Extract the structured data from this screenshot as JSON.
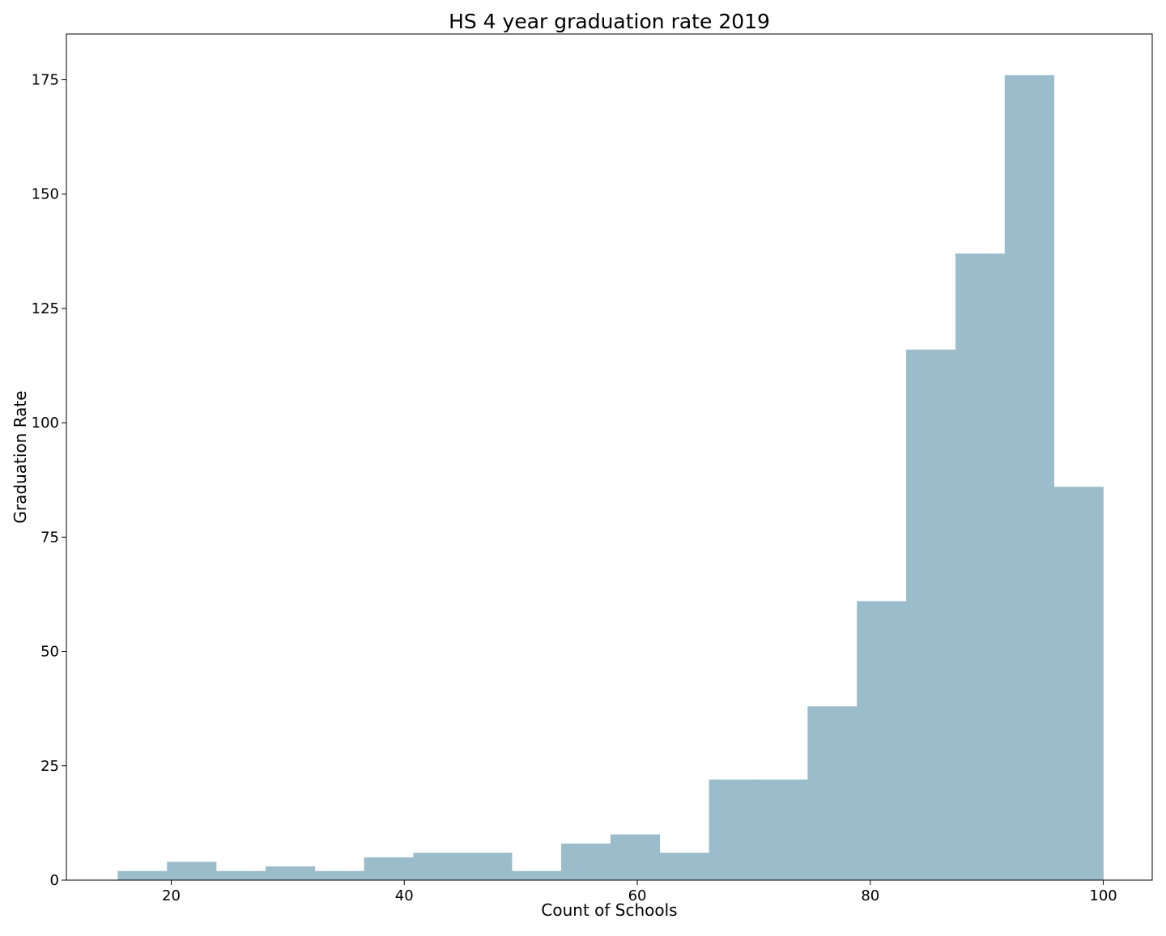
{
  "chart_data": {
    "type": "bar",
    "title": "HS 4 year graduation rate 2019",
    "xlabel": "Count of Schools",
    "ylabel": "Graduation Rate",
    "xlim": [
      11.0,
      104.2
    ],
    "ylim": [
      0,
      185
    ],
    "x_ticks": [
      "20",
      "40",
      "60",
      "80",
      "100"
    ],
    "y_ticks": [
      "0",
      "25",
      "50",
      "75",
      "100",
      "125",
      "150",
      "175"
    ],
    "bin_edges": [
      15.4,
      19.63,
      23.86,
      28.09,
      32.32,
      36.55,
      40.78,
      45.01,
      49.24,
      53.47,
      57.7,
      61.93,
      66.16,
      70.39,
      74.62,
      78.85,
      83.08,
      87.31,
      91.54,
      95.77,
      100.0
    ],
    "values": [
      2,
      4,
      2,
      3,
      2,
      5,
      6,
      6,
      2,
      8,
      10,
      6,
      22,
      22,
      38,
      61,
      116,
      137,
      176,
      86
    ],
    "bar_color": "#9bbccb",
    "grid": false,
    "legend": "none"
  }
}
